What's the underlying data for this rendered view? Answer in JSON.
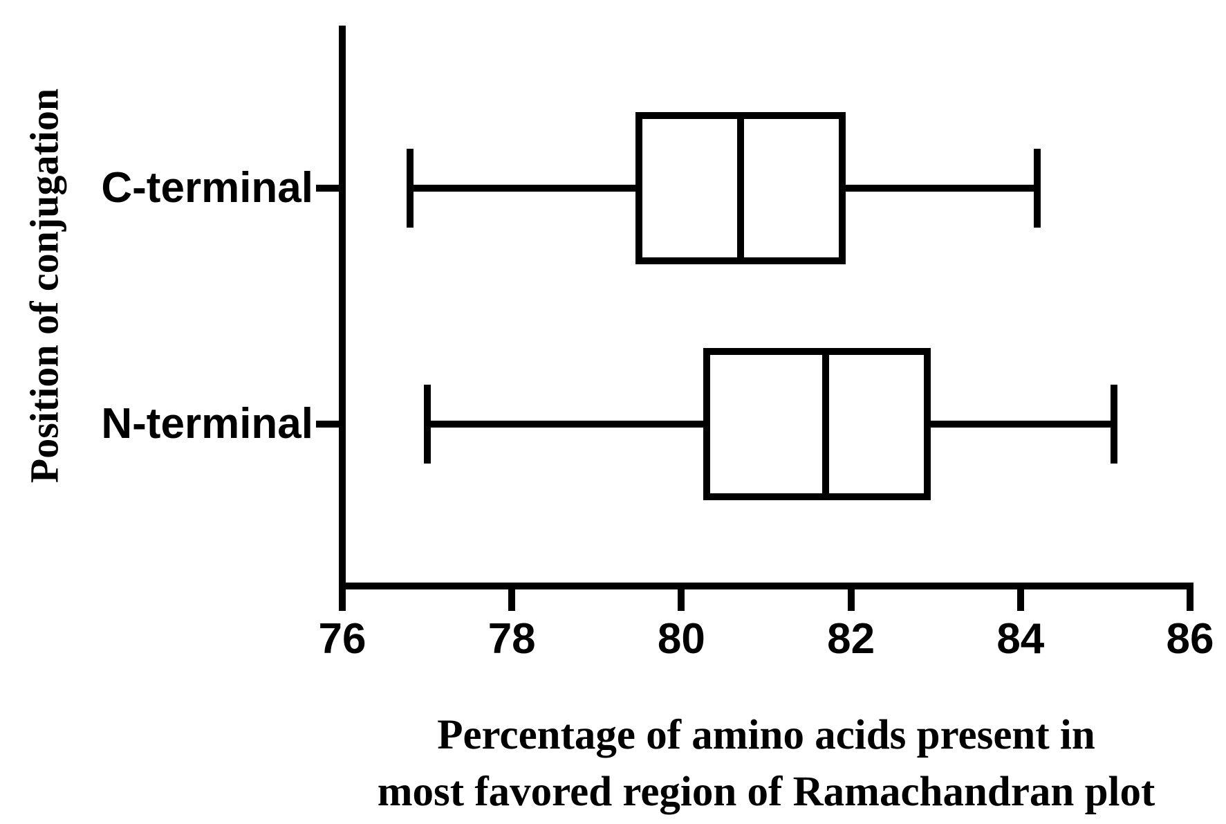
{
  "figure": {
    "background": "#ffffff",
    "ink": "#000000"
  },
  "chart_data": {
    "type": "boxplot",
    "orientation": "horizontal",
    "title": "",
    "xlabel_lines": [
      "Percentage of amino acids present in",
      "most favored region of Ramachandran plot"
    ],
    "ylabel": "Position of conjugation",
    "xlim": [
      76,
      86
    ],
    "xticks": [
      "76",
      "78",
      "80",
      "82",
      "84",
      "86"
    ],
    "grid": false,
    "legend": null,
    "categories": [
      "C-terminal",
      "N-terminal"
    ],
    "series": [
      {
        "name": "C-terminal",
        "min": 76.8,
        "q1": 79.5,
        "median": 80.7,
        "q3": 81.9,
        "max": 84.2
      },
      {
        "name": "N-terminal",
        "min": 77.0,
        "q1": 80.3,
        "median": 81.7,
        "q3": 82.9,
        "max": 85.1
      }
    ]
  }
}
